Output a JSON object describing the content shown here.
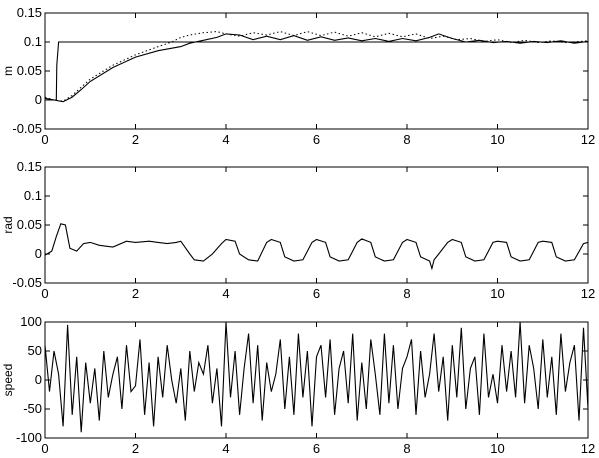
{
  "chart_data": [
    {
      "type": "line",
      "ylabel": "m",
      "xlabel": "",
      "xlim": [
        0,
        12
      ],
      "ylim": [
        -0.05,
        0.15
      ],
      "xticks": [
        "0",
        "2",
        "4",
        "6",
        "8",
        "10",
        "12"
      ],
      "yticks": [
        "0.15",
        "0.1",
        "0.05",
        "0",
        "-0.05"
      ],
      "grid": false,
      "series": [
        {
          "style": "solid",
          "x": [
            0,
            0.25,
            0.26,
            0.3,
            12
          ],
          "y": [
            0,
            0,
            0.06,
            0.1,
            0.1
          ]
        },
        {
          "style": "dotted",
          "x": [
            0,
            0.2,
            0.4,
            0.6,
            0.8,
            1.0,
            1.5,
            2.0,
            2.5,
            2.8,
            3.0,
            3.2,
            3.5,
            3.8,
            4.0,
            4.3,
            4.6,
            4.9,
            5.2,
            5.5,
            5.8,
            6.1,
            6.4,
            6.7,
            7.0,
            7.3,
            7.6,
            7.9,
            8.2,
            8.5,
            8.8,
            9.1,
            9.4,
            9.7,
            10.0,
            10.3,
            10.6,
            10.9,
            11.2,
            11.5,
            12.0
          ],
          "y": [
            0.005,
            0.0,
            -0.002,
            0.008,
            0.022,
            0.036,
            0.06,
            0.078,
            0.092,
            0.1,
            0.108,
            0.112,
            0.116,
            0.118,
            0.114,
            0.11,
            0.116,
            0.112,
            0.118,
            0.111,
            0.118,
            0.111,
            0.117,
            0.11,
            0.116,
            0.109,
            0.115,
            0.109,
            0.114,
            0.106,
            0.11,
            0.104,
            0.106,
            0.101,
            0.104,
            0.099,
            0.103,
            0.099,
            0.102,
            0.099,
            0.102
          ]
        },
        {
          "style": "solid",
          "x": [
            0,
            0.2,
            0.4,
            0.6,
            0.8,
            1.0,
            1.5,
            2.0,
            2.5,
            3.0,
            3.2,
            3.5,
            3.8,
            4.0,
            4.3,
            4.6,
            4.9,
            5.2,
            5.5,
            5.8,
            6.1,
            6.4,
            6.7,
            7.0,
            7.3,
            7.6,
            7.9,
            8.2,
            8.5,
            8.7,
            9.0,
            9.3,
            9.6,
            9.9,
            10.2,
            10.5,
            10.8,
            11.1,
            11.4,
            11.7,
            12.0
          ],
          "y": [
            0.003,
            0.0,
            -0.003,
            0.005,
            0.018,
            0.032,
            0.056,
            0.074,
            0.085,
            0.092,
            0.098,
            0.103,
            0.108,
            0.114,
            0.112,
            0.104,
            0.11,
            0.104,
            0.111,
            0.103,
            0.109,
            0.103,
            0.107,
            0.102,
            0.106,
            0.101,
            0.106,
            0.102,
            0.108,
            0.114,
            0.106,
            0.1,
            0.103,
            0.099,
            0.101,
            0.098,
            0.101,
            0.099,
            0.102,
            0.098,
            0.101
          ]
        }
      ]
    },
    {
      "type": "line",
      "ylabel": "rad",
      "xlabel": "",
      "xlim": [
        0,
        12
      ],
      "ylim": [
        -0.05,
        0.15
      ],
      "xticks": [
        "0",
        "2",
        "4",
        "6",
        "8",
        "10",
        "12"
      ],
      "yticks": [
        "0.15",
        "0.1",
        "0.05",
        "0",
        "-0.05"
      ],
      "grid": false,
      "series": [
        {
          "style": "solid",
          "x": [
            0,
            0.15,
            0.25,
            0.35,
            0.45,
            0.55,
            0.7,
            0.85,
            1.0,
            1.2,
            1.5,
            1.8,
            2.0,
            2.3,
            2.5,
            2.7,
            2.9,
            3.0,
            3.2,
            3.3,
            3.5,
            3.7,
            3.9,
            4.0,
            4.2,
            4.3,
            4.5,
            4.7,
            4.9,
            5.0,
            5.2,
            5.3,
            5.5,
            5.7,
            5.9,
            6.0,
            6.2,
            6.3,
            6.5,
            6.7,
            6.9,
            7.0,
            7.2,
            7.3,
            7.5,
            7.7,
            7.9,
            8.0,
            8.2,
            8.3,
            8.5,
            8.55,
            8.6,
            8.7,
            8.9,
            9.0,
            9.2,
            9.3,
            9.5,
            9.7,
            9.9,
            10.0,
            10.2,
            10.3,
            10.5,
            10.7,
            10.9,
            11.0,
            11.2,
            11.3,
            11.5,
            11.7,
            11.9,
            12.0
          ],
          "y": [
            -0.002,
            0.005,
            0.03,
            0.052,
            0.05,
            0.01,
            0.005,
            0.018,
            0.02,
            0.015,
            0.012,
            0.022,
            0.02,
            0.022,
            0.02,
            0.018,
            0.02,
            0.022,
            0.0,
            -0.01,
            -0.012,
            0.0,
            0.018,
            0.025,
            0.022,
            0.0,
            -0.01,
            -0.012,
            0.02,
            0.025,
            0.02,
            -0.005,
            -0.012,
            -0.01,
            0.02,
            0.025,
            0.02,
            -0.005,
            -0.012,
            -0.01,
            0.02,
            0.026,
            0.02,
            -0.005,
            -0.012,
            -0.01,
            0.02,
            0.025,
            0.02,
            -0.005,
            -0.012,
            -0.025,
            -0.01,
            0.0,
            0.02,
            0.025,
            0.02,
            -0.005,
            -0.012,
            -0.01,
            0.02,
            0.022,
            0.02,
            -0.005,
            -0.012,
            -0.01,
            0.02,
            0.022,
            0.02,
            -0.005,
            -0.012,
            -0.01,
            0.018,
            0.02
          ]
        }
      ]
    },
    {
      "type": "line",
      "ylabel": "speed",
      "xlabel": "",
      "xlim": [
        0,
        12
      ],
      "ylim": [
        -100,
        100
      ],
      "xticks": [
        "0",
        "2",
        "4",
        "6",
        "8",
        "10",
        "12"
      ],
      "yticks": [
        "100",
        "50",
        "0",
        "-50",
        "-100"
      ],
      "grid": false,
      "series": [
        {
          "style": "solid",
          "x": [
            0,
            0.1,
            0.2,
            0.3,
            0.4,
            0.5,
            0.6,
            0.7,
            0.8,
            0.9,
            1.0,
            1.1,
            1.2,
            1.3,
            1.4,
            1.5,
            1.6,
            1.7,
            1.8,
            1.9,
            2.0,
            2.1,
            2.2,
            2.3,
            2.4,
            2.5,
            2.6,
            2.7,
            2.8,
            2.9,
            3.0,
            3.1,
            3.2,
            3.3,
            3.4,
            3.5,
            3.6,
            3.7,
            3.8,
            3.9,
            4.0,
            4.1,
            4.2,
            4.3,
            4.4,
            4.5,
            4.6,
            4.7,
            4.8,
            4.9,
            5.0,
            5.1,
            5.2,
            5.3,
            5.4,
            5.5,
            5.6,
            5.7,
            5.8,
            5.9,
            6.0,
            6.1,
            6.2,
            6.3,
            6.4,
            6.5,
            6.6,
            6.7,
            6.8,
            6.9,
            7.0,
            7.1,
            7.2,
            7.3,
            7.4,
            7.5,
            7.6,
            7.7,
            7.8,
            7.9,
            8.0,
            8.1,
            8.2,
            8.3,
            8.4,
            8.5,
            8.6,
            8.7,
            8.8,
            8.9,
            9.0,
            9.1,
            9.2,
            9.3,
            9.4,
            9.5,
            9.6,
            9.7,
            9.8,
            9.9,
            10.0,
            10.1,
            10.2,
            10.3,
            10.4,
            10.5,
            10.6,
            10.7,
            10.8,
            10.9,
            11.0,
            11.1,
            11.2,
            11.3,
            11.4,
            11.5,
            11.6,
            11.7,
            11.8,
            11.9,
            12.0
          ],
          "y": [
            60,
            -20,
            50,
            10,
            -80,
            95,
            -60,
            40,
            -90,
            30,
            -40,
            20,
            -70,
            50,
            -30,
            10,
            40,
            -50,
            60,
            -20,
            -10,
            70,
            -60,
            30,
            -80,
            40,
            -30,
            60,
            0,
            -40,
            20,
            -70,
            50,
            -20,
            30,
            10,
            60,
            -40,
            20,
            -80,
            100,
            -30,
            50,
            -60,
            20,
            80,
            -40,
            60,
            -70,
            30,
            -20,
            10,
            70,
            -50,
            40,
            -60,
            80,
            -30,
            50,
            -80,
            40,
            60,
            -30,
            70,
            -60,
            20,
            50,
            -40,
            80,
            -70,
            30,
            -50,
            70,
            10,
            -60,
            80,
            -40,
            60,
            -50,
            20,
            40,
            70,
            -60,
            50,
            -30,
            10,
            80,
            -20,
            40,
            -70,
            60,
            -30,
            90,
            -50,
            20,
            40,
            -60,
            80,
            -30,
            10,
            -40,
            60,
            -20,
            50,
            -30,
            100,
            -40,
            60,
            20,
            -50,
            70,
            -30,
            40,
            -60,
            80,
            -20,
            30,
            60,
            -70,
            90,
            -50
          ]
        }
      ]
    }
  ]
}
